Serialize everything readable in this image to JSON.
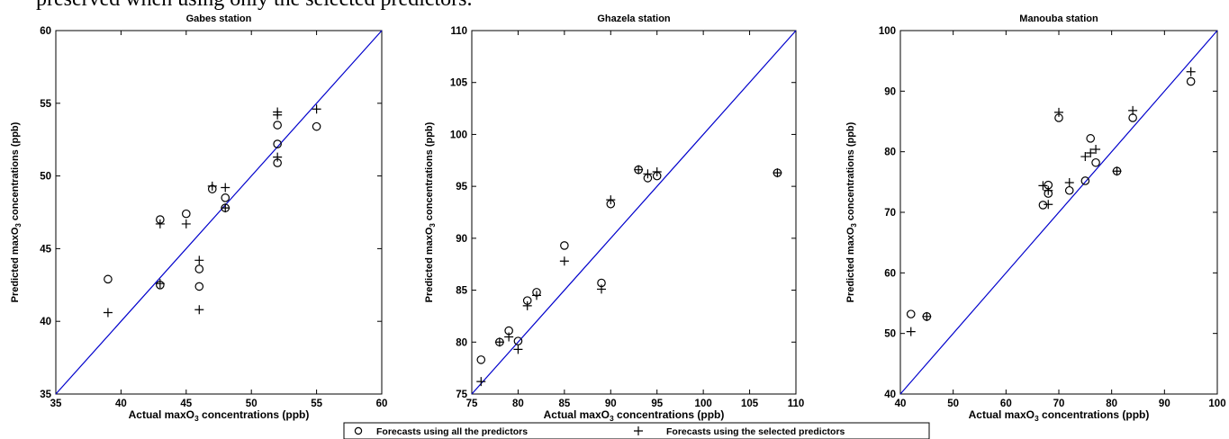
{
  "caption": "preserved when using only the selected predictors.",
  "legend": {
    "all": "Forecasts using all the predictors",
    "selected": "Forecasts using the selected predictors"
  },
  "colors": {
    "line": "#0000cc",
    "marker": "#000000"
  },
  "chart_data": [
    {
      "type": "scatter",
      "title": "Gabes station",
      "xlabel_pre": "Actual maxO",
      "xlabel_sub": "3",
      "xlabel_post": " concentrations  (ppb)",
      "ylabel_pre": "Predicted maxO",
      "ylabel_sub": "3",
      "ylabel_post": " concentrations (ppb)",
      "xlim": [
        35,
        60
      ],
      "ylim": [
        35,
        60
      ],
      "xticks": [
        35,
        40,
        45,
        50,
        55,
        60
      ],
      "yticks": [
        35,
        40,
        45,
        50,
        55,
        60
      ],
      "series": [
        {
          "marker": "circle",
          "points": [
            [
              39,
              42.9
            ],
            [
              43,
              47.0
            ],
            [
              43,
              42.5
            ],
            [
              45,
              47.4
            ],
            [
              46,
              43.6
            ],
            [
              46,
              42.4
            ],
            [
              47,
              49.1
            ],
            [
              48,
              48.5
            ],
            [
              48,
              47.8
            ],
            [
              52,
              53.5
            ],
            [
              52,
              52.2
            ],
            [
              52,
              50.9
            ],
            [
              55,
              53.4
            ]
          ]
        },
        {
          "marker": "plus",
          "points": [
            [
              39,
              40.6
            ],
            [
              43,
              46.7
            ],
            [
              43,
              42.6
            ],
            [
              45,
              46.7
            ],
            [
              46,
              44.2
            ],
            [
              46,
              40.8
            ],
            [
              47,
              49.3
            ],
            [
              48,
              49.2
            ],
            [
              48,
              47.8
            ],
            [
              52,
              54.4
            ],
            [
              52,
              54.2
            ],
            [
              52,
              51.3
            ],
            [
              55,
              54.6
            ]
          ]
        }
      ]
    },
    {
      "type": "scatter",
      "title": "Ghazela station",
      "xlabel_pre": "Actual maxO",
      "xlabel_sub": "3",
      "xlabel_post": " concentrations  (ppb)",
      "ylabel_pre": "Predicted maxO",
      "ylabel_sub": "3",
      "ylabel_post": " concentrations (ppb)",
      "xlim": [
        75,
        110
      ],
      "ylim": [
        75,
        110
      ],
      "xticks": [
        75,
        80,
        85,
        90,
        95,
        100,
        105,
        110
      ],
      "yticks": [
        75,
        80,
        85,
        90,
        95,
        100,
        105,
        110
      ],
      "series": [
        {
          "marker": "circle",
          "points": [
            [
              76,
              78.3
            ],
            [
              78,
              80.0
            ],
            [
              79,
              81.1
            ],
            [
              80,
              80.1
            ],
            [
              81,
              84.0
            ],
            [
              82,
              84.8
            ],
            [
              85,
              89.3
            ],
            [
              89,
              85.7
            ],
            [
              90,
              93.3
            ],
            [
              93,
              96.6
            ],
            [
              94,
              95.8
            ],
            [
              95,
              96.0
            ],
            [
              108,
              96.3
            ]
          ]
        },
        {
          "marker": "plus",
          "points": [
            [
              76,
              76.2
            ],
            [
              78,
              80.0
            ],
            [
              79,
              80.5
            ],
            [
              80,
              79.3
            ],
            [
              81,
              83.5
            ],
            [
              82,
              84.5
            ],
            [
              85,
              87.8
            ],
            [
              89,
              85.1
            ],
            [
              90,
              93.7
            ],
            [
              93,
              96.6
            ],
            [
              94,
              96.2
            ],
            [
              95,
              96.4
            ],
            [
              108,
              96.3
            ]
          ]
        }
      ]
    },
    {
      "type": "scatter",
      "title": "Manouba station",
      "xlabel_pre": "Actual maxO",
      "xlabel_sub": "3",
      "xlabel_post": " concentrations  (ppb)",
      "ylabel_pre": "Predicted maxO",
      "ylabel_sub": "3",
      "ylabel_post": " concentrations (ppb)",
      "xlim": [
        40,
        100
      ],
      "ylim": [
        40,
        100
      ],
      "xticks": [
        40,
        50,
        60,
        70,
        80,
        90,
        100
      ],
      "yticks": [
        40,
        50,
        60,
        70,
        80,
        90,
        100
      ],
      "series": [
        {
          "marker": "circle",
          "points": [
            [
              42,
              53.2
            ],
            [
              45,
              52.8
            ],
            [
              67,
              71.2
            ],
            [
              68,
              74.5
            ],
            [
              68,
              73.1
            ],
            [
              70,
              85.6
            ],
            [
              72,
              73.6
            ],
            [
              75,
              75.2
            ],
            [
              76,
              82.2
            ],
            [
              77,
              78.2
            ],
            [
              81,
              76.8
            ],
            [
              84,
              85.6
            ],
            [
              95,
              91.6
            ]
          ]
        },
        {
          "marker": "plus",
          "points": [
            [
              42,
              50.3
            ],
            [
              45,
              52.8
            ],
            [
              67,
              74.4
            ],
            [
              68,
              71.3
            ],
            [
              68,
              73.6
            ],
            [
              70,
              86.5
            ],
            [
              72,
              74.9
            ],
            [
              75,
              79.2
            ],
            [
              76,
              79.8
            ],
            [
              77,
              80.4
            ],
            [
              81,
              76.8
            ],
            [
              84,
              86.8
            ],
            [
              95,
              93.2
            ]
          ]
        }
      ]
    }
  ]
}
